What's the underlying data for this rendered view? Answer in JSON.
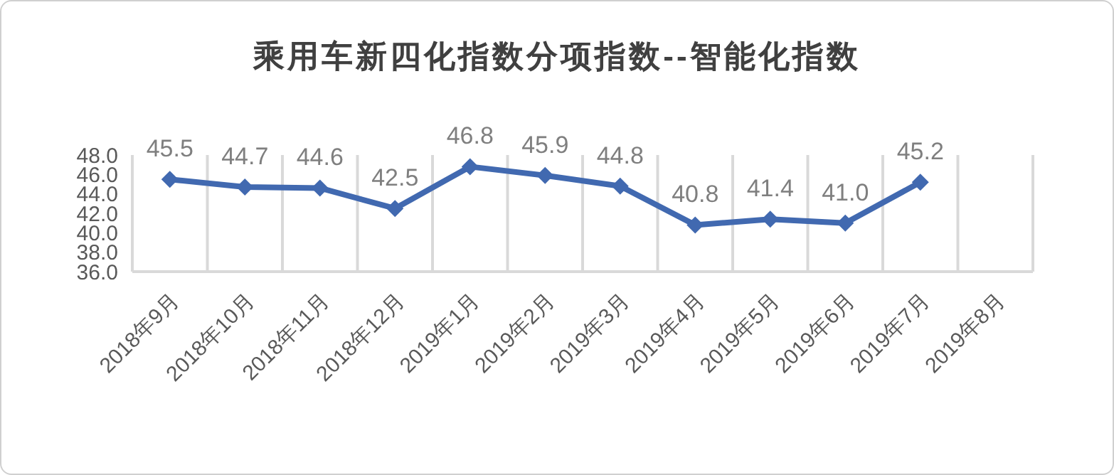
{
  "chart_data": {
    "type": "line",
    "title": "乘用车新四化指数分项指数--智能化指数",
    "categories": [
      "2018年9月",
      "2018年10月",
      "2018年11月",
      "2018年12月",
      "2019年1月",
      "2019年2月",
      "2019年3月",
      "2019年4月",
      "2019年5月",
      "2019年6月",
      "2019年7月",
      "2019年8月"
    ],
    "series": [
      {
        "color": "#4169b0",
        "values": [
          45.5,
          44.7,
          44.6,
          42.5,
          46.8,
          45.9,
          44.8,
          40.8,
          41.4,
          41.0,
          45.2,
          null
        ],
        "value_labels": [
          "45.5",
          "44.7",
          "44.6",
          "42.5",
          "46.8",
          "45.9",
          "44.8",
          "40.8",
          "41.4",
          "41.0",
          "45.2",
          null
        ]
      }
    ],
    "ylim": [
      36,
      48
    ],
    "yticks": [
      {
        "value": 36,
        "label": "36.0"
      },
      {
        "value": 38,
        "label": "38.0"
      },
      {
        "value": 40,
        "label": "40.0"
      },
      {
        "value": 42,
        "label": "42.0"
      },
      {
        "value": 44,
        "label": "44.0"
      },
      {
        "value": 46,
        "label": "46.0"
      },
      {
        "value": 48,
        "label": "48.0"
      }
    ],
    "grid": "x",
    "legend": false,
    "marker": "diamond",
    "line_style": "solid"
  }
}
